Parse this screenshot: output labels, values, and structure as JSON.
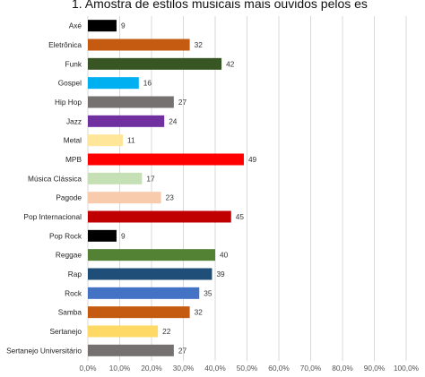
{
  "chart_data": {
    "type": "bar",
    "orientation": "horizontal",
    "title": "1. Amostra de estilos musicais mais ouvidos pelos es",
    "categories": [
      "Axé",
      "Eletrônica",
      "Funk",
      "Gospel",
      "Hip Hop",
      "Jazz",
      "Metal",
      "MPB",
      "Música Clássica",
      "Pagode",
      "Pop Internacional",
      "Pop Rock",
      "Reggae",
      "Rap",
      "Rock",
      "Samba",
      "Sertanejo",
      "Sertanejo Universitário"
    ],
    "values": [
      9,
      32,
      42,
      16,
      27,
      24,
      11,
      49,
      17,
      23,
      45,
      9,
      40,
      39,
      35,
      32,
      22,
      27
    ],
    "bar_colors": [
      "#000000",
      "#C55A11",
      "#375623",
      "#00B0F0",
      "#767171",
      "#7030A0",
      "#FFE699",
      "#FF0000",
      "#C5E0B4",
      "#F8CBAD",
      "#C00000",
      "#000000",
      "#548235",
      "#1F4E79",
      "#4472C4",
      "#C55A11",
      "#FFD966",
      "#767171"
    ],
    "xlim": [
      0,
      100
    ],
    "x_ticks": [
      "0,0%",
      "10,0%",
      "20,0%",
      "30,0%",
      "40,0%",
      "50,0%",
      "60,0%",
      "70,0%",
      "80,0%",
      "90,0%",
      "100,0%"
    ],
    "grid": true,
    "legend": "none",
    "xlabel": "",
    "ylabel": ""
  }
}
